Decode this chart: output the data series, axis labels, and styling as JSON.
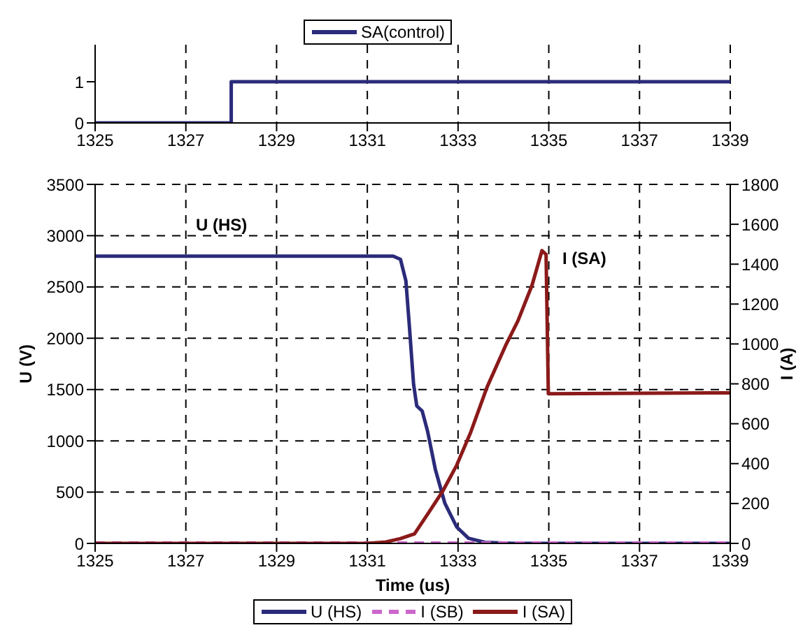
{
  "chart_data": [
    {
      "type": "step",
      "xlim": [
        1325,
        1339
      ],
      "xticks": [
        1325,
        1327,
        1329,
        1331,
        1333,
        1335,
        1337,
        1339
      ],
      "ylim": [
        0,
        1.9
      ],
      "yticks": [
        0,
        1
      ],
      "grid": "x",
      "legend": "top",
      "line_style": "solid",
      "marker": "none",
      "series": [
        {
          "name": "SA(control)",
          "color": "#2b2b7a",
          "x": [
            1325,
            1328,
            1339
          ],
          "values": [
            0,
            1,
            1
          ]
        }
      ]
    },
    {
      "type": "line",
      "xlabel": "Time (us)",
      "ylabel": "U (V)",
      "y2label": "I (A)",
      "xlim": [
        1325,
        1339
      ],
      "xticks": [
        1325,
        1327,
        1329,
        1331,
        1333,
        1335,
        1337,
        1339
      ],
      "ylim": [
        0,
        3500
      ],
      "yticks": [
        0,
        500,
        1000,
        1500,
        2000,
        2500,
        3000,
        3500
      ],
      "y2lim": [
        0,
        1800
      ],
      "y2ticks": [
        0,
        200,
        400,
        600,
        800,
        1000,
        1200,
        1400,
        1600,
        1800
      ],
      "grid": true,
      "legend": "bottom",
      "marker": "none",
      "annotations": [
        "U (HS)",
        "I (SA)"
      ],
      "series": [
        {
          "name": "U (HS)",
          "color": "#2b2b7a",
          "line_style": "solid",
          "x": [
            1325,
            1331.57,
            1331.73,
            1331.85,
            1331.93,
            1332.02,
            1332.09,
            1332.21,
            1332.33,
            1332.5,
            1332.71,
            1332.97,
            1333.23,
            1333.59,
            1334.21,
            1339
          ],
          "values": [
            2800,
            2800,
            2770,
            2560,
            2100,
            1550,
            1340,
            1290,
            1090,
            720,
            390,
            160,
            50,
            10,
            0,
            0
          ]
        },
        {
          "name": "I (SB)",
          "color": "#cc66cc",
          "line_style": "dashed",
          "axis": "y2",
          "x": [
            1325,
            1339
          ],
          "values": [
            0,
            0
          ]
        },
        {
          "name": "I (SA)",
          "color": "#8b1a1a",
          "line_style": "solid",
          "axis": "y2",
          "x": [
            1325,
            1331,
            1331.41,
            1331.73,
            1332.04,
            1332.35,
            1332.66,
            1332.97,
            1333.28,
            1333.64,
            1334.06,
            1334.32,
            1334.63,
            1334.85,
            1334.94,
            1334.99,
            1335,
            1339
          ],
          "values": [
            0,
            0,
            7,
            24,
            48,
            154,
            261,
            392,
            558,
            784,
            998,
            1116,
            1294,
            1468,
            1449,
            750,
            750,
            755
          ]
        }
      ]
    }
  ]
}
